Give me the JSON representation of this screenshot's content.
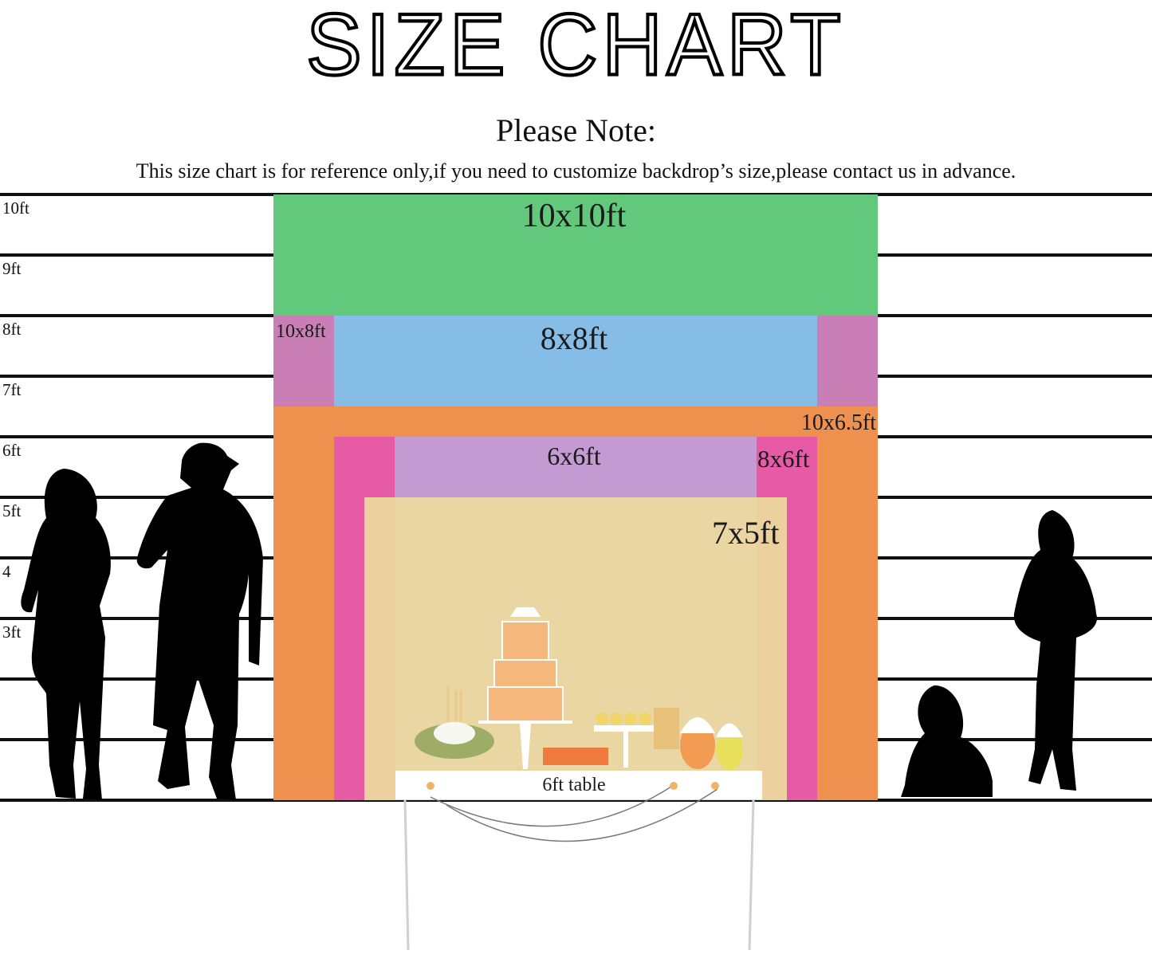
{
  "header": {
    "title": "SIZE CHART",
    "note_heading": "Please Note:",
    "note_text": "This size chart is for reference only,if you need to customize backdrop’s size,please contact us in advance."
  },
  "height_scale": {
    "unit": "ft",
    "labels": [
      "10ft",
      "9ft",
      "8ft",
      "7ft",
      "6ft",
      "5ft",
      "4",
      "3ft"
    ]
  },
  "backdrops": [
    {
      "id": "10x10",
      "label": "10x10ft",
      "width_ft": 10,
      "height_ft": 10,
      "color": "#62c97c"
    },
    {
      "id": "10x8",
      "label": "10x8ft",
      "width_ft": 10,
      "height_ft": 8,
      "color": "#c97fb6"
    },
    {
      "id": "8x8",
      "label": "8x8ft",
      "width_ft": 8,
      "height_ft": 8,
      "color": "#86bde7"
    },
    {
      "id": "10x65",
      "label": "10x6.5ft",
      "width_ft": 10,
      "height_ft": 6.5,
      "color": "#ee914f"
    },
    {
      "id": "8x6",
      "label": "8x6ft",
      "width_ft": 8,
      "height_ft": 6,
      "color": "#e65aa6"
    },
    {
      "id": "6x6",
      "label": "6x6ft",
      "width_ft": 6,
      "height_ft": 6,
      "color": "#c39bd2"
    },
    {
      "id": "7x5",
      "label": "7x5ft",
      "width_ft": 7,
      "height_ft": 5,
      "color": "#eddb9e"
    }
  ],
  "table": {
    "label": "6ft table",
    "width_ft": 6
  }
}
